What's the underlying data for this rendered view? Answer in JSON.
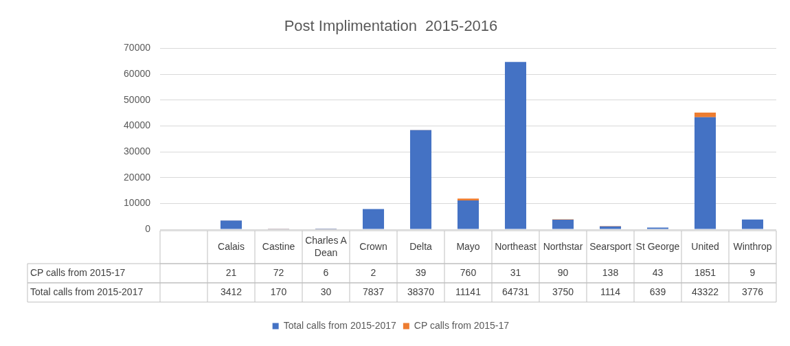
{
  "chart_data": {
    "type": "bar",
    "title": "Post Implimentation  2015-2016",
    "stacked": true,
    "data_labels": true,
    "legend": "bottom",
    "grid": "y",
    "categories": [
      null,
      "Calais",
      "Castine",
      "Charles A Dean",
      "Crown",
      "Delta",
      "Mayo",
      "Northeast",
      "Northstar",
      "Searsport",
      "St George",
      "United",
      "Winthrop"
    ],
    "series": [
      {
        "name": "Total calls from 2015-2017",
        "color": "#4472c4",
        "values": [
          null,
          3412,
          170,
          30,
          7837,
          38370,
          11141,
          64731,
          3750,
          1114,
          639,
          43322,
          3776
        ]
      },
      {
        "name": "CP calls from 2015-17",
        "color": "#ed7d31",
        "values": [
          null,
          21,
          72,
          6,
          2,
          39,
          760,
          31,
          90,
          138,
          43,
          1851,
          9
        ]
      }
    ],
    "ylim": [
      0,
      70000
    ],
    "yticks": [
      0,
      10000,
      20000,
      30000,
      40000,
      50000,
      60000,
      70000
    ]
  }
}
